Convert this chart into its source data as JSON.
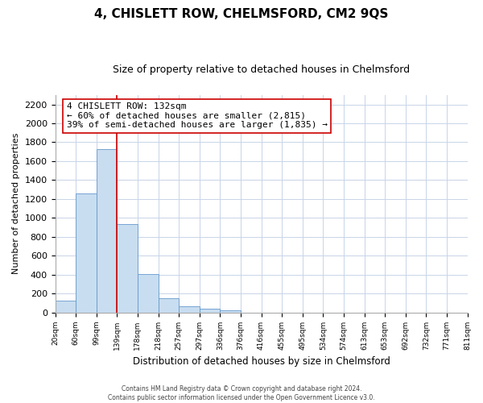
{
  "title": "4, CHISLETT ROW, CHELMSFORD, CM2 9QS",
  "subtitle": "Size of property relative to detached houses in Chelmsford",
  "xlabel": "Distribution of detached houses by size in Chelmsford",
  "ylabel": "Number of detached properties",
  "bar_values": [
    120,
    1260,
    1730,
    930,
    405,
    150,
    68,
    35,
    18,
    0,
    0,
    0,
    0,
    0,
    0,
    0,
    0,
    0,
    0,
    0
  ],
  "bin_labels": [
    "20sqm",
    "60sqm",
    "99sqm",
    "139sqm",
    "178sqm",
    "218sqm",
    "257sqm",
    "297sqm",
    "336sqm",
    "376sqm",
    "416sqm",
    "455sqm",
    "495sqm",
    "534sqm",
    "574sqm",
    "613sqm",
    "653sqm",
    "692sqm",
    "732sqm",
    "771sqm",
    "811sqm"
  ],
  "bar_color": "#c8ddf0",
  "bar_edge_color": "#6699cc",
  "vline_x": 3.0,
  "vline_color": "#cc0000",
  "ylim": [
    0,
    2300
  ],
  "yticks": [
    0,
    200,
    400,
    600,
    800,
    1000,
    1200,
    1400,
    1600,
    1800,
    2000,
    2200
  ],
  "annotation_title": "4 CHISLETT ROW: 132sqm",
  "annotation_line1": "← 60% of detached houses are smaller (2,815)",
  "annotation_line2": "39% of semi-detached houses are larger (1,835) →",
  "annotation_box_color": "#ffffff",
  "annotation_box_edge": "#cc0000",
  "footer_line1": "Contains HM Land Registry data © Crown copyright and database right 2024.",
  "footer_line2": "Contains public sector information licensed under the Open Government Licence v3.0.",
  "background_color": "#ffffff",
  "grid_color": "#c8d4e8"
}
